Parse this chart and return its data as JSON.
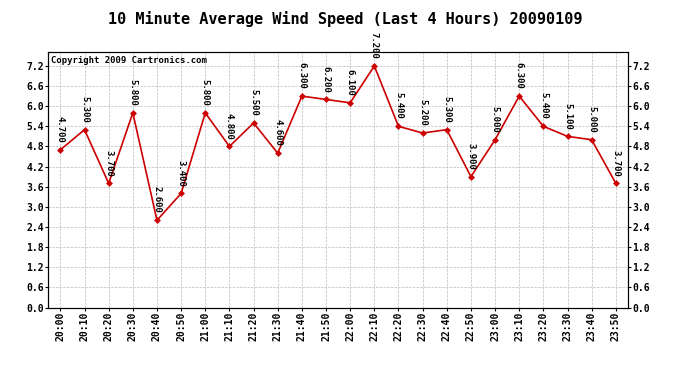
{
  "title": "10 Minute Average Wind Speed (Last 4 Hours) 20090109",
  "copyright": "Copyright 2009 Cartronics.com",
  "times": [
    "20:00",
    "20:10",
    "20:20",
    "20:30",
    "20:40",
    "20:50",
    "21:00",
    "21:10",
    "21:20",
    "21:30",
    "21:40",
    "21:50",
    "22:00",
    "22:10",
    "22:20",
    "22:30",
    "22:40",
    "22:50",
    "23:00",
    "23:10",
    "23:20",
    "23:30",
    "23:40",
    "23:50"
  ],
  "values": [
    4.7,
    5.3,
    3.7,
    5.8,
    2.6,
    3.4,
    5.8,
    4.8,
    5.5,
    4.6,
    6.3,
    6.2,
    6.1,
    7.2,
    5.4,
    5.2,
    5.3,
    3.9,
    5.0,
    6.3,
    5.4,
    5.1,
    5.0,
    3.7
  ],
  "ylim": [
    0.0,
    7.6
  ],
  "yticks": [
    0.0,
    0.6,
    1.2,
    1.8,
    2.4,
    3.0,
    3.6,
    4.2,
    4.8,
    5.4,
    6.0,
    6.6,
    7.2
  ],
  "line_color": "#cc0000",
  "marker_color": "#cc0000",
  "bg_color": "white",
  "grid_color": "#bbbbbb",
  "title_fontsize": 11,
  "tick_fontsize": 7,
  "annotation_fontsize": 6.5,
  "copyright_fontsize": 6.5
}
